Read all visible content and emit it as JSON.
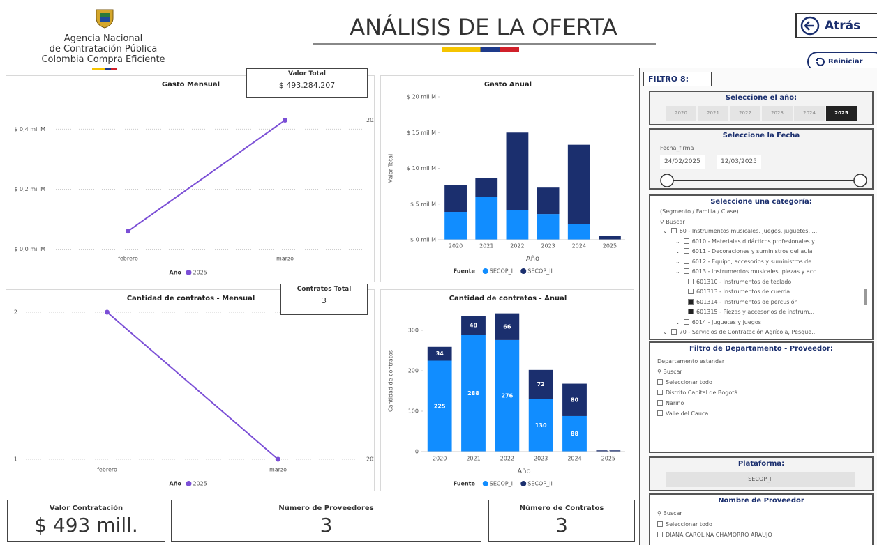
{
  "header": {
    "org": [
      "Agencia Nacional",
      "de Contratación Pública",
      "Colombia Compra Eficiente"
    ],
    "title": "ANÁLISIS DE LA OFERTA",
    "back": "Atrás",
    "reset": "Reiniciar"
  },
  "cards": {
    "valor_total": {
      "label": "Valor Total",
      "value": "$ 493.284.207"
    },
    "contratos_total": {
      "label": "Contratos Total",
      "value": "3"
    }
  },
  "kpis": [
    {
      "label": "Valor Contratación",
      "value": "$ 493 mill."
    },
    {
      "label": "Número de Proveedores",
      "value": "3"
    },
    {
      "label": "Número de Contratos",
      "value": "3"
    }
  ],
  "charts": [
    {
      "type": "line",
      "title": "Gasto Mensual",
      "categories": [
        "febrero",
        "marzo"
      ],
      "series": [
        {
          "name": "2025",
          "color": "#7b4fd6",
          "values": [
            0.06,
            0.43
          ]
        }
      ],
      "ylim": [
        -0.015,
        0.48
      ],
      "yticks": [
        {
          "value": 0,
          "label": "$ 0,0 mil M"
        },
        {
          "value": 0.2,
          "label": "$ 0,2 mil M"
        },
        {
          "value": 0.4,
          "label": "$ 0,4 mil M"
        }
      ],
      "legend_title": "Año",
      "grid": true
    },
    {
      "type": "stacked_bar",
      "title": "Gasto Anual",
      "categories": [
        "2020",
        "2021",
        "2022",
        "2023",
        "2024",
        "2025"
      ],
      "series": [
        {
          "name": "SECOP_I",
          "color": "#118dff",
          "values": [
            3.9,
            6.0,
            4.1,
            3.6,
            2.2,
            0
          ]
        },
        {
          "name": "SECOP_II",
          "color": "#1b2f6e",
          "values": [
            3.8,
            2.6,
            10.9,
            3.7,
            11.1,
            0.49
          ]
        }
      ],
      "ylim": [
        0,
        20
      ],
      "yticks": [
        {
          "value": 0,
          "label": "$ 0 mil M"
        },
        {
          "value": 5,
          "label": "$ 5 mil M"
        },
        {
          "value": 10,
          "label": "$ 10 mil M"
        },
        {
          "value": 15,
          "label": "$ 15 mil M"
        },
        {
          "value": 20,
          "label": "$ 20 mil M"
        }
      ],
      "xlabel": "Año",
      "ylabel": "Valor Total",
      "legend_title": "Fuente",
      "grid": false,
      "show_values": false
    },
    {
      "type": "line",
      "title": "Cantidad de contratos - Mensual",
      "categories": [
        "febrero",
        "marzo"
      ],
      "series": [
        {
          "name": "2025",
          "color": "#7b4fd6",
          "values": [
            2,
            1
          ]
        }
      ],
      "ylim": [
        1,
        2
      ],
      "yticks": [
        1,
        2
      ],
      "legend_title": "Año",
      "grid": true
    },
    {
      "type": "stacked_bar",
      "title": "Cantidad de contratos - Anual",
      "categories": [
        "2020",
        "2021",
        "2022",
        "2023",
        "2024",
        "2025"
      ],
      "series": [
        {
          "name": "SECOP_I",
          "color": "#118dff",
          "values": [
            225,
            288,
            276,
            130,
            88,
            0
          ]
        },
        {
          "name": "SECOP_II",
          "color": "#1b2f6e",
          "values": [
            34,
            48,
            66,
            72,
            80,
            3
          ]
        }
      ],
      "ylim": [
        0,
        350
      ],
      "yticks": [
        0,
        100,
        200,
        300
      ],
      "xlabel": "Año",
      "ylabel": "Cantidad de contratos",
      "legend_title": "Fuente",
      "grid": false,
      "show_values": true
    }
  ],
  "filters": {
    "title": "FILTRO 8:",
    "year": {
      "title": "Seleccione el año:",
      "options": [
        {
          "label": "2020",
          "selected": false
        },
        {
          "label": "2021",
          "selected": false
        },
        {
          "label": "2022",
          "selected": false
        },
        {
          "label": "2023",
          "selected": false
        },
        {
          "label": "2024",
          "selected": false
        },
        {
          "label": "2025",
          "selected": true
        }
      ]
    },
    "date": {
      "title": "Seleccione la Fecha",
      "field": "Fecha_firma",
      "from": "24/02/2025",
      "to": "12/03/2025"
    },
    "category": {
      "title": "Seleccione una categoría:",
      "subtitle": "(Segmento / Familia / Clase)",
      "search": "Buscar",
      "items": [
        {
          "label": "60 - Instrumentos musicales, juegos, juguetes, ...",
          "level": 1,
          "checked": false
        },
        {
          "label": "6010 - Materiales didácticos profesionales y...",
          "level": 2,
          "checked": false
        },
        {
          "label": "6011 - Decoraciones y suministros del aula",
          "level": 2,
          "checked": false
        },
        {
          "label": "6012 - Equipo, accesorios y suministros de ...",
          "level": 2,
          "checked": false
        },
        {
          "label": "6013 - Instrumentos musicales, piezas y acc...",
          "level": 2,
          "checked": false
        },
        {
          "label": "601310 - Instrumentos de teclado",
          "level": 3,
          "checked": false
        },
        {
          "label": "601313 - Instrumentos de cuerda",
          "level": 3,
          "checked": false
        },
        {
          "label": "601314 - Instrumentos de percusión",
          "level": 3,
          "checked": true
        },
        {
          "label": "601315 - Piezas y accesorios de instrum...",
          "level": 3,
          "checked": true
        },
        {
          "label": "6014 - Juguetes y juegos",
          "level": 2,
          "checked": false
        },
        {
          "label": "70 - Servicios de Contratación Agrícola, Pesque...",
          "level": 1,
          "checked": false
        }
      ]
    },
    "department": {
      "title": "Filtro de Departamento - Proveedor:",
      "field": "Departamento estandar",
      "search": "Buscar",
      "items": [
        "Seleccionar todo",
        "Distrito Capital de Bogotá",
        "Nariño",
        "Valle del Cauca"
      ]
    },
    "platform": {
      "title": "Plataforma:",
      "value": "SECOP_II"
    },
    "provider": {
      "title": "Nombre de Proveedor",
      "search": "Buscar",
      "items": [
        "Seleccionar todo",
        "DIANA CAROLINA CHAMORRO ARAUJO"
      ]
    }
  }
}
